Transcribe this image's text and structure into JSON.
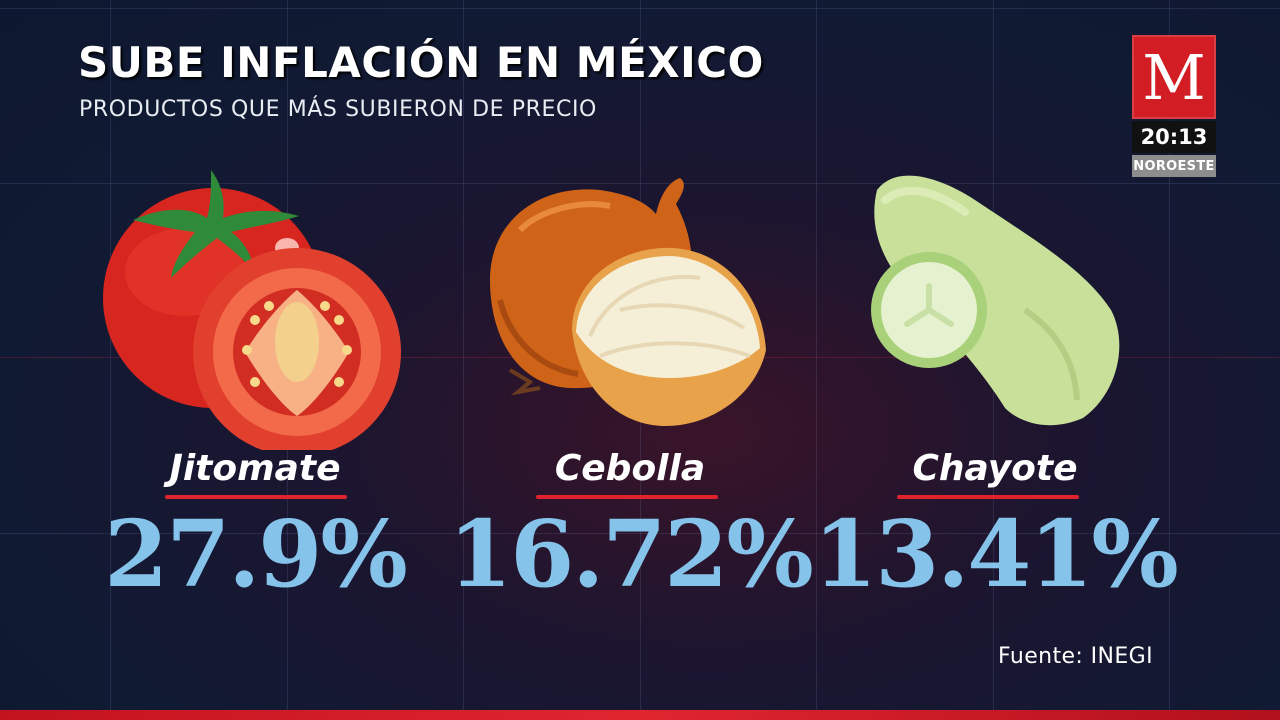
{
  "header": {
    "title": "SUBE INFLACIÓN EN MÉXICO",
    "subtitle": "PRODUCTOS QUE MÁS SUBIERON DE PRECIO"
  },
  "broadcast": {
    "logo_letter": "M",
    "time": "20:13",
    "region": "NOROESTE"
  },
  "products": [
    {
      "name": "Jitomate",
      "value": "27.9%",
      "icon": "tomato-icon"
    },
    {
      "name": "Cebolla",
      "value": "16.72%",
      "icon": "onion-icon"
    },
    {
      "name": "Chayote",
      "value": "13.41%",
      "icon": "chayote-icon"
    }
  ],
  "colors": {
    "accent_red": "#e0222c",
    "value_blue": "#86c3ea",
    "logo_red": "#d31d24"
  },
  "footer": {
    "source": "Fuente: INEGI"
  }
}
